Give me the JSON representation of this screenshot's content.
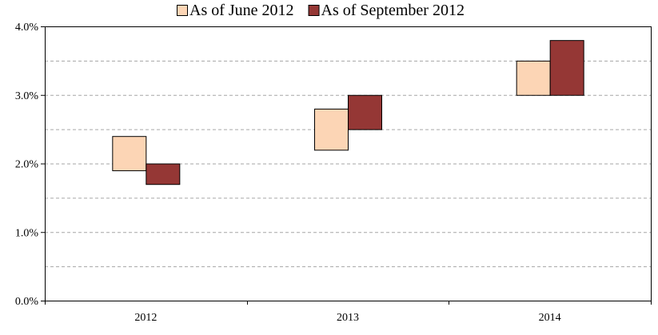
{
  "chart_data": {
    "type": "bar",
    "subtype": "floating-range",
    "categories": [
      "2012",
      "2013",
      "2014"
    ],
    "series": [
      {
        "name": "As of June 2012",
        "color": "#fcd5b5",
        "ranges": [
          [
            1.9,
            2.4
          ],
          [
            2.2,
            2.8
          ],
          [
            3.0,
            3.5
          ]
        ]
      },
      {
        "name": "As of September 2012",
        "color": "#953735",
        "ranges": [
          [
            1.7,
            2.0
          ],
          [
            2.5,
            3.0
          ],
          [
            3.0,
            3.8
          ]
        ]
      }
    ],
    "ylim": [
      0,
      4.0
    ],
    "yticks": [
      0,
      1.0,
      2.0,
      3.0,
      4.0
    ],
    "ytick_labels": [
      "0.0%",
      "1.0%",
      "2.0%",
      "3.0%",
      "4.0%"
    ],
    "minor_gridlines": [
      0.5,
      1.5,
      2.5,
      3.5
    ],
    "grid": "dashed horizontal",
    "legend_position": "top"
  }
}
